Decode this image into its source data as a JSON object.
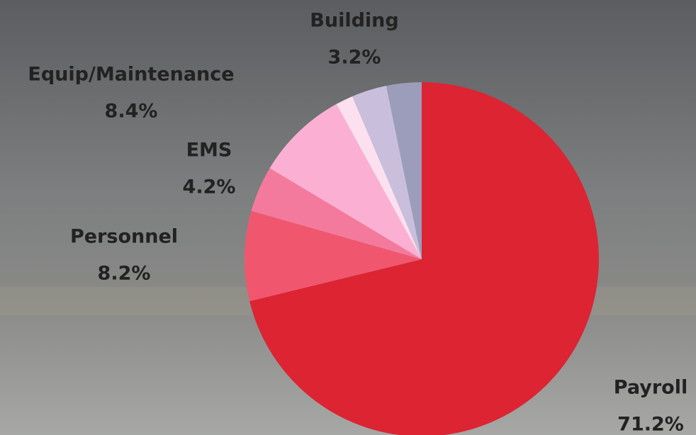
{
  "chart_data": {
    "type": "pie",
    "categories": [
      "Payroll",
      "Personnel",
      "EMS",
      "Equip/Maintenance",
      null,
      null,
      "Building"
    ],
    "values": [
      71.2,
      8.2,
      4.2,
      8.4,
      1.6,
      3.2,
      3.2
    ],
    "value_labels": [
      "71.2%",
      "8.2%",
      "4.2%",
      "8.4%",
      null,
      null,
      "3.2%"
    ],
    "colors": [
      "#dc2433",
      "#f0576f",
      "#f47a9d",
      "#fbb0d3",
      "#fde0f0",
      "#c9bfdc",
      "#9b9dbb"
    ]
  }
}
